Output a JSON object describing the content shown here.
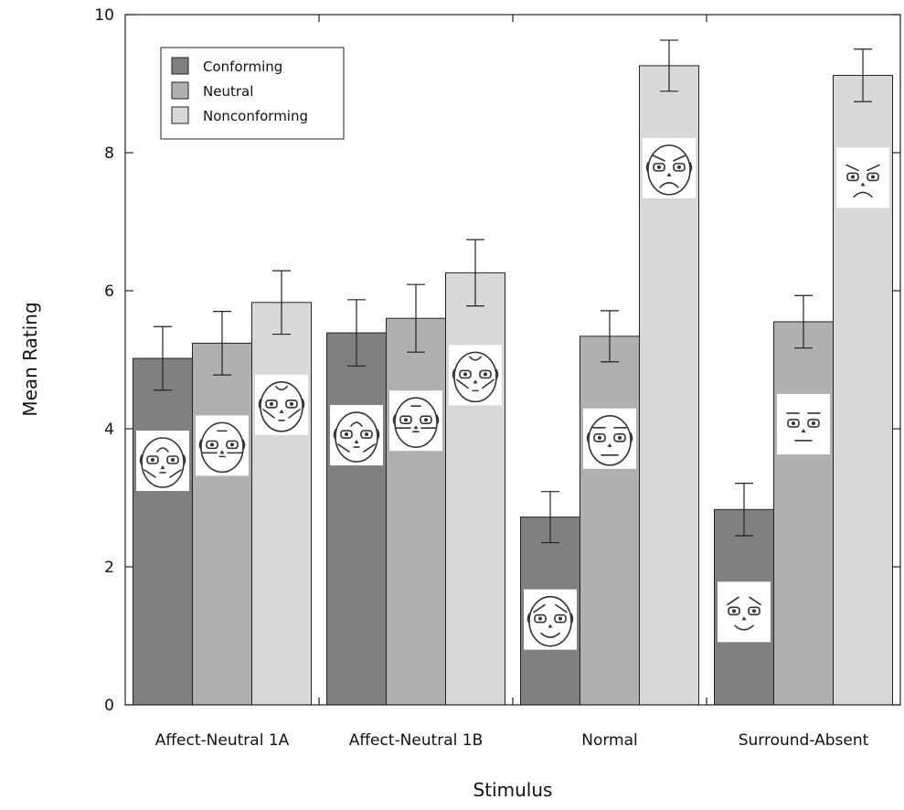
{
  "chart_data": {
    "type": "bar",
    "xlabel": "Stimulus",
    "ylabel": "Mean Rating",
    "ylim": [
      0,
      10
    ],
    "yticks": [
      "0",
      "2",
      "4",
      "6",
      "8",
      "10"
    ],
    "categories": [
      "Affect-Neutral 1A",
      "Affect-Neutral 1B",
      "Normal",
      "Surround-Absent"
    ],
    "series": [
      {
        "name": "Conforming",
        "color": "#808080",
        "values": [
          5.02,
          5.39,
          2.72,
          2.83
        ],
        "errors": [
          0.46,
          0.48,
          0.37,
          0.38
        ]
      },
      {
        "name": "Neutral",
        "color": "#b0b0b0",
        "values": [
          5.24,
          5.6,
          5.34,
          5.55
        ],
        "errors": [
          0.46,
          0.49,
          0.37,
          0.38
        ]
      },
      {
        "name": "Nonconforming",
        "color": "#d8d8d8",
        "values": [
          5.83,
          6.26,
          9.26,
          9.12
        ],
        "errors": [
          0.46,
          0.48,
          0.37,
          0.38
        ]
      }
    ],
    "legend_position": "top-left",
    "grid": false,
    "face_icons": [
      [
        "neutral-face-conforming-icon",
        "neutral-face-neutral-icon",
        "neutral-face-nonconforming-icon"
      ],
      [
        "neutral-face-conforming-icon",
        "neutral-face-neutral-icon",
        "neutral-face-nonconforming-icon"
      ],
      [
        "happy-face-icon",
        "neutral-face-icon",
        "angry-face-icon"
      ],
      [
        "happy-face-no-surround-icon",
        "neutral-face-no-surround-icon",
        "angry-face-no-surround-icon"
      ]
    ]
  }
}
